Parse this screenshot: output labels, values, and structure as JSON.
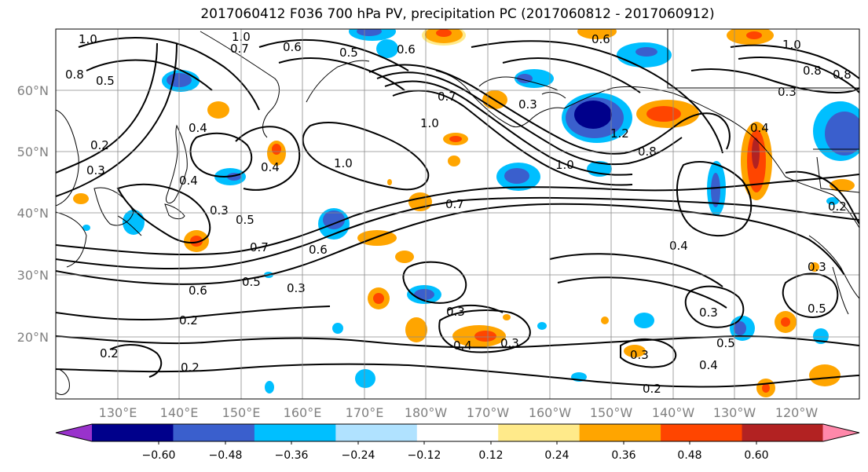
{
  "title": "2017060412 F036 700 hPa PV, precipitation PC (2017060812 - 2017060912)",
  "lat_labels": [
    "60°N",
    "50°N",
    "40°N",
    "30°N",
    "20°N"
  ],
  "lon_labels": [
    "130°E",
    "140°E",
    "150°E",
    "160°E",
    "170°E",
    "180°W",
    "170°W",
    "160°W",
    "150°W",
    "140°W",
    "130°W",
    "120°W"
  ],
  "colorbar": {
    "colors": [
      "#9932cc",
      "#00008b",
      "#3a5fcd",
      "#00bfff",
      "#b0e2ff",
      "#ffffff",
      "#ffea8a",
      "#ffa500",
      "#ff4500",
      "#b22222",
      "#ff88aa"
    ],
    "tick_labels": [
      "−0.60",
      "−0.48",
      "−0.36",
      "−0.24",
      "−0.12",
      "0.12",
      "0.24",
      "0.36",
      "0.48",
      "0.60"
    ]
  },
  "contour_labels": [
    "1.0",
    "1.0",
    "0.7",
    "0.6",
    "0.5",
    "0.6",
    "0.6",
    "0.8",
    "0.8",
    "0.5",
    "0.3",
    "0.2",
    "0.3",
    "0.4",
    "0.4",
    "0.4",
    "0.3",
    "1.0",
    "1.0",
    "0.7",
    "1.2",
    "0.8",
    "1.0",
    "1.0",
    "0.8",
    "0.3",
    "0.4",
    "0.7",
    "0.6",
    "0.5",
    "0.7",
    "0.5",
    "0.6",
    "0.3",
    "0.2",
    "0.2",
    "0.2",
    "0.3",
    "0.4",
    "0.3",
    "0.3",
    "0.4",
    "0.2",
    "0.3",
    "0.5",
    "0.4",
    "0.5",
    "0.3",
    "0.2"
  ]
}
